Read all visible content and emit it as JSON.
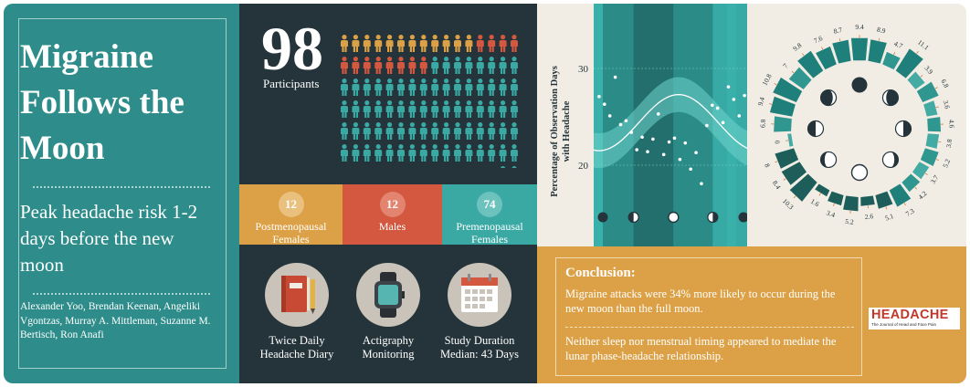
{
  "title": "Migraine Follows the Moon",
  "subtitle": "Peak headache risk 1-2 days before the new moon",
  "authors": "Alexander Yoo, Brendan Keenan, Angeliki Vgontzas, Murray A. Mittleman, Suzanne M. Bertisch, Ron Anafi",
  "participants": {
    "count": "98",
    "label": "Participants"
  },
  "groups": [
    {
      "count": "12",
      "label": "Postmenopausal Females",
      "color": "#dca146"
    },
    {
      "count": "12",
      "label": "Males",
      "color": "#d4573f"
    },
    {
      "count": "74",
      "label": "Premenopausal Females",
      "color": "#3aa9a4"
    }
  ],
  "methods": [
    {
      "label": "Twice Daily Headache Diary",
      "icon": "diary-icon"
    },
    {
      "label": "Actigraphy Monitoring",
      "icon": "watch-icon"
    },
    {
      "label": "Study Duration Median: 43 Days",
      "icon": "calendar-icon"
    }
  ],
  "chart_data": {
    "type": "scatter",
    "ylabel": "Percentage of Observation Days with Headache",
    "yticks": [
      "30",
      "20"
    ],
    "ylim": [
      15,
      35
    ],
    "xlim": [
      0,
      29.5
    ],
    "x": [
      1,
      2,
      3,
      4,
      5,
      6,
      7,
      8,
      9,
      10,
      11,
      12,
      13,
      14,
      15,
      16,
      17,
      18,
      19,
      20,
      21,
      22,
      23,
      24,
      25,
      26,
      27,
      28,
      29
    ],
    "y": [
      27.1,
      26.3,
      25.1,
      29.1,
      24.2,
      24.6,
      23.4,
      21.6,
      22.9,
      21.4,
      22.7,
      25.3,
      21.1,
      22.4,
      22.8,
      20.6,
      22.3,
      19.6,
      21.3,
      18.1,
      24.1,
      26.2,
      25.9,
      24.4,
      28.1,
      26.8,
      25.1,
      27.2,
      25.6
    ],
    "moon_phases": [
      "new",
      "first-quarter",
      "full",
      "last-quarter",
      "new"
    ]
  },
  "clock_data": {
    "type": "radial-bar",
    "values": [
      "9.4",
      "8.9",
      "4.7",
      "11.1",
      "3.9",
      "6.8",
      "3.6",
      "4.6",
      "3.8",
      "5.2",
      "3.7",
      "4.2",
      "7.3",
      "5.1",
      "2.6",
      "5.2",
      "3.4",
      "1.6",
      "10.3",
      "8.4",
      "8",
      "0",
      "6.8",
      "9.4",
      "10.8",
      "7",
      "9.8",
      "7.6",
      "8.7"
    ]
  },
  "conclusion": {
    "title": "Conclusion:",
    "p1": "Migraine attacks were 34% more likely to occur during the new moon than the full moon.",
    "p2": "Neither sleep nor menstrual timing appeared to mediate the lunar phase-headache relationship."
  },
  "journal": {
    "name": "HEADACHE",
    "subtitle": "The Journal of Head and Face Pain"
  },
  "colors": {
    "teal": "#2e8d8a",
    "dark": "#24343a",
    "orange": "#dca146",
    "red": "#d4573f",
    "cream": "#f1ede4"
  }
}
